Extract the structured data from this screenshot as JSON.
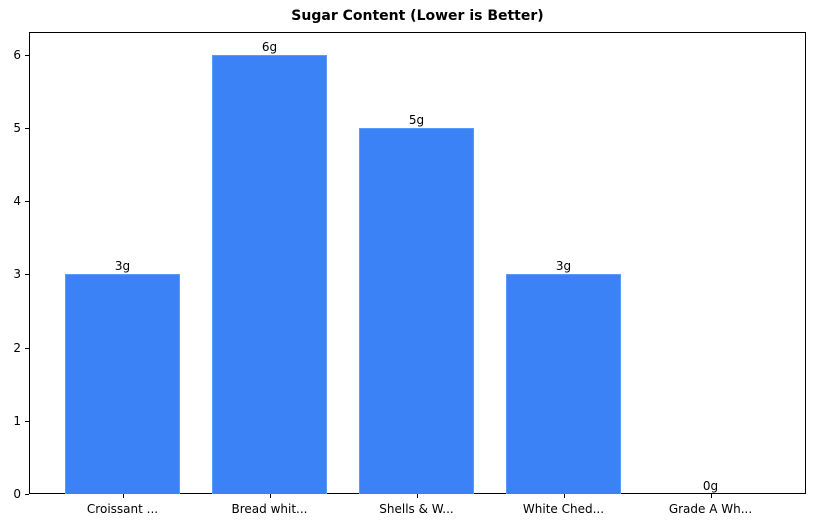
{
  "chart_data": {
    "type": "bar",
    "title": "Sugar Content (Lower is Better)",
    "xlabel": "",
    "ylabel": "",
    "categories": [
      "Croissant ...",
      "Bread whit...",
      "Shells & W...",
      "White Ched...",
      "Grade A Wh..."
    ],
    "values": [
      3,
      6,
      5,
      3,
      0
    ],
    "data_labels": [
      "3g",
      "6g",
      "5g",
      "3g",
      "0g"
    ],
    "ylim": [
      0,
      6.3
    ],
    "yticks": [
      0,
      1,
      2,
      3,
      4,
      5,
      6
    ],
    "grid": false,
    "legend": null,
    "bar_color": "#3b82f6"
  }
}
